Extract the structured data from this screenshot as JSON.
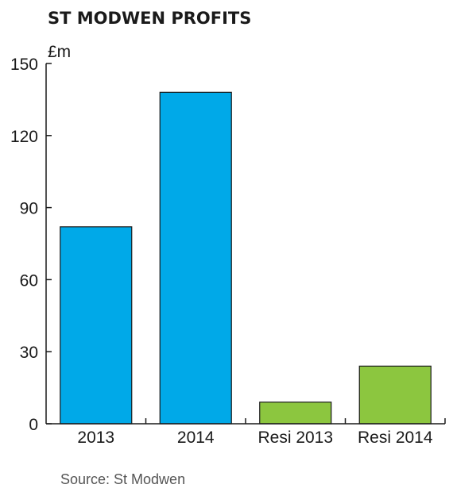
{
  "chart_data": {
    "type": "bar",
    "title": "ST MODWEN PROFITS",
    "ylabel": "£m",
    "xlabel": "",
    "categories": [
      "2013",
      "2014",
      "Resi 2013",
      "Resi 2014"
    ],
    "values": [
      82,
      138,
      9,
      24
    ],
    "bar_colors": [
      "#00a9e8",
      "#00a9e8",
      "#8cc63f",
      "#8cc63f"
    ],
    "ylim": [
      0,
      150
    ],
    "yticks": [
      0,
      30,
      60,
      90,
      120,
      150
    ],
    "grid": false,
    "legend": "none",
    "source": "Source: St Modwen"
  }
}
